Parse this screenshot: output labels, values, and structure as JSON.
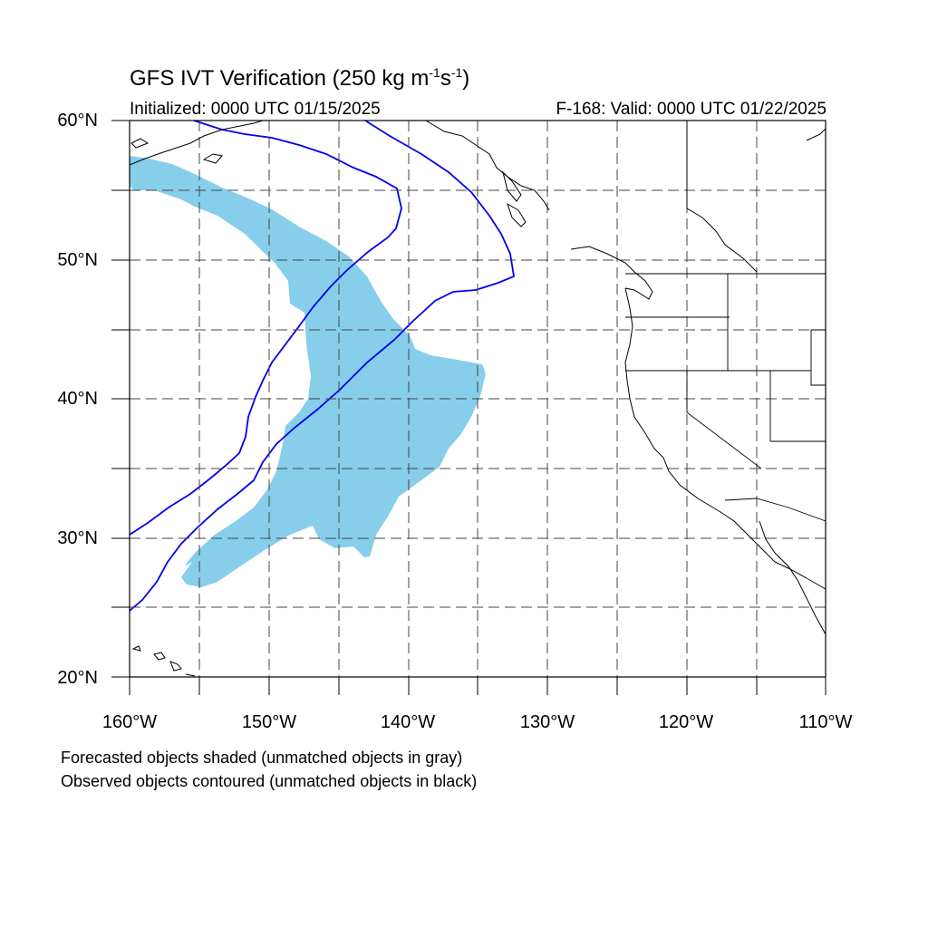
{
  "title": {
    "main": "GFS IVT Verification (250 kg m",
    "unit_sup1": "-1",
    "unit_mid": "s",
    "unit_sup2": "-1",
    "close": ")"
  },
  "initialized": "Initialized: 0000 UTC 01/15/2025",
  "valid": "F-168: Valid: 0000 UTC 01/22/2025",
  "lat_labels": [
    "60°N",
    "50°N",
    "40°N",
    "30°N",
    "20°N"
  ],
  "lon_labels": [
    "160°W",
    "150°W",
    "140°W",
    "130°W",
    "120°W",
    "110°W"
  ],
  "footnotes": [
    "Forecasted objects shaded (unmatched objects in gray)",
    "Observed objects contoured (unmatched objects in black)"
  ],
  "map": {
    "lon_range": [
      -160,
      -110
    ],
    "lat_range": [
      20,
      60
    ],
    "gridlines": "dashed every 5°",
    "forecast_fill_color": "#87ceeb",
    "observed_contour_color": "#0000ee",
    "coastline_color": "#000000"
  }
}
